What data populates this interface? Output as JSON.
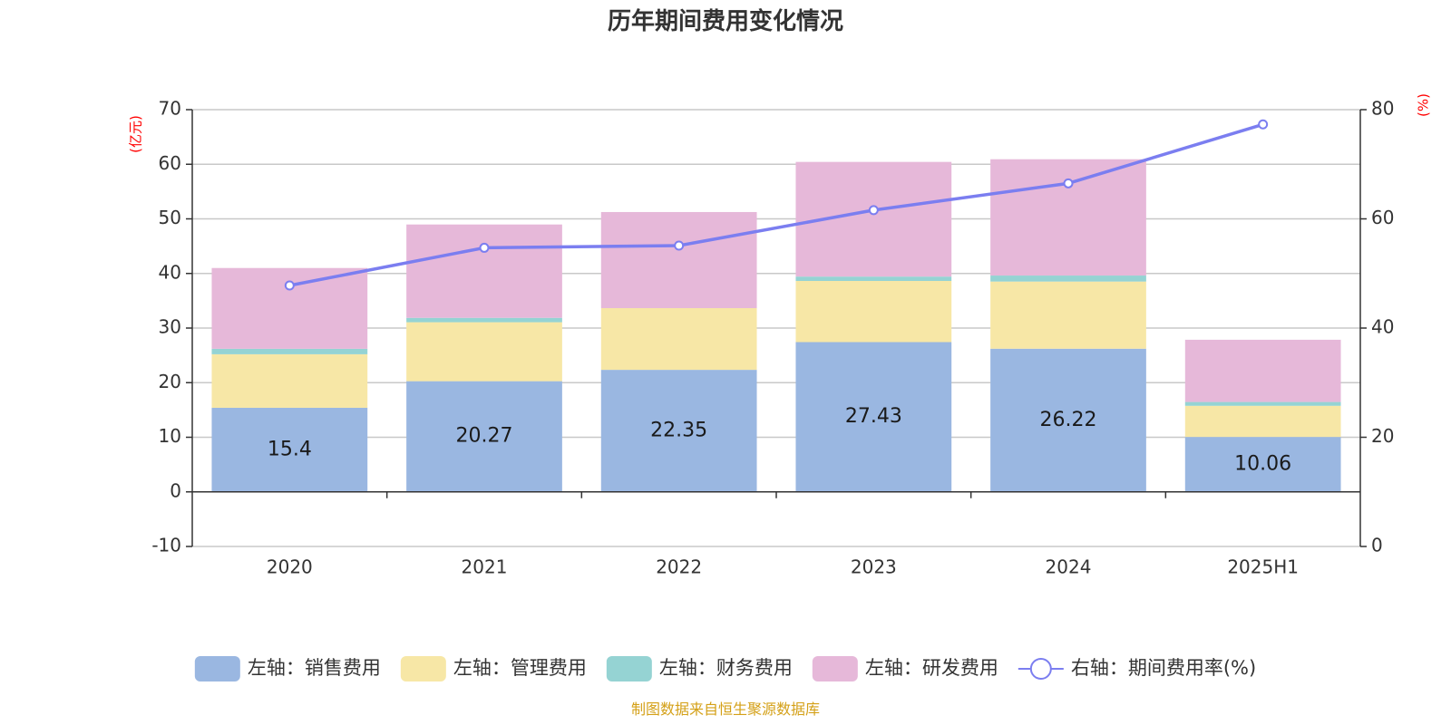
{
  "chart_data": {
    "type": "bar",
    "title": "历年期间费用变化情况",
    "categories": [
      "2020",
      "2021",
      "2022",
      "2023",
      "2024",
      "2025H1"
    ],
    "left_axis": {
      "unit": "(亿元)",
      "ylim": [
        -10,
        70
      ],
      "ticks": [
        -10,
        0,
        10,
        20,
        30,
        40,
        50,
        60,
        70
      ]
    },
    "right_axis": {
      "unit": "(%)",
      "ylim": [
        0,
        80
      ],
      "ticks": [
        0,
        20,
        40,
        60,
        80
      ]
    },
    "series": [
      {
        "name": "左轴：销售费用",
        "kind": "bar",
        "axis": "left",
        "color": "#9ab7e1",
        "values": [
          15.4,
          20.27,
          22.35,
          27.43,
          26.22,
          10.06
        ],
        "show_labels": true
      },
      {
        "name": "左轴：管理费用",
        "kind": "bar",
        "axis": "left",
        "color": "#f7e7a6",
        "values": [
          9.8,
          10.8,
          11.3,
          11.2,
          12.3,
          5.7
        ],
        "show_labels": false
      },
      {
        "name": "左轴：财务费用",
        "kind": "bar",
        "axis": "left",
        "color": "#95d3d3",
        "values": [
          1.0,
          0.8,
          0.0,
          0.8,
          1.1,
          0.7
        ],
        "show_labels": false
      },
      {
        "name": "左轴：研发费用",
        "kind": "bar",
        "axis": "left",
        "color": "#e6b8d9",
        "values": [
          14.8,
          17.1,
          17.6,
          21.0,
          21.3,
          11.4
        ],
        "show_labels": false
      },
      {
        "name": "右轴：期间费用率(%)",
        "kind": "line",
        "axis": "right",
        "color": "#7b7ef0",
        "values": [
          47.8,
          54.7,
          55.1,
          61.6,
          66.5,
          77.3
        ]
      }
    ],
    "grid": true,
    "legend_position": "bottom"
  },
  "source_note": "制图数据来自恒生聚源数据库"
}
